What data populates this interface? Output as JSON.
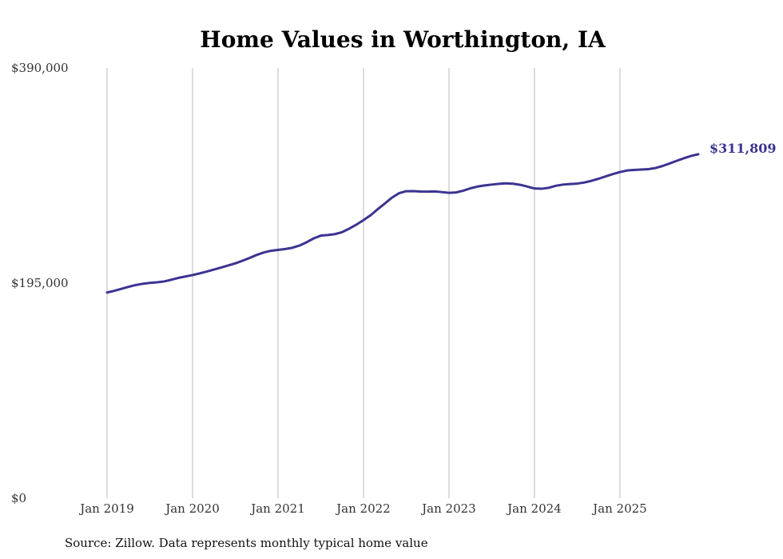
{
  "chart_data": {
    "type": "line",
    "title": "Home Values in Worthington, IA",
    "source": "Source: Zillow. Data represents monthly typical home value",
    "xlabel": "",
    "ylabel": "",
    "ylim": [
      0,
      390000
    ],
    "y_ticks": [
      {
        "value": 0,
        "label": "$0"
      },
      {
        "value": 195000,
        "label": "$195,000"
      },
      {
        "value": 390000,
        "label": "$390,000"
      }
    ],
    "x_range": [
      2019.0,
      2025.9167
    ],
    "x_ticks": [
      {
        "value": 2019,
        "label": "Jan 2019"
      },
      {
        "value": 2020,
        "label": "Jan 2020"
      },
      {
        "value": 2021,
        "label": "Jan 2021"
      },
      {
        "value": 2022,
        "label": "Jan 2022"
      },
      {
        "value": 2023,
        "label": "Jan 2023"
      },
      {
        "value": 2024,
        "label": "Jan 2024"
      },
      {
        "value": 2025,
        "label": "Jan 2025"
      }
    ],
    "grid": "vertical",
    "line_color": "#3b3491",
    "grid_color": "#bbbbbb",
    "end_label": "$311,809",
    "series": [
      {
        "name": "Home Values",
        "x": [
          2019.0,
          2019.0833,
          2019.1667,
          2019.25,
          2019.3333,
          2019.4167,
          2019.5,
          2019.5833,
          2019.6667,
          2019.75,
          2019.8333,
          2019.9167,
          2020.0,
          2020.0833,
          2020.1667,
          2020.25,
          2020.3333,
          2020.4167,
          2020.5,
          2020.5833,
          2020.6667,
          2020.75,
          2020.8333,
          2020.9167,
          2021.0,
          2021.0833,
          2021.1667,
          2021.25,
          2021.3333,
          2021.4167,
          2021.5,
          2021.5833,
          2021.6667,
          2021.75,
          2021.8333,
          2021.9167,
          2022.0,
          2022.0833,
          2022.1667,
          2022.25,
          2022.3333,
          2022.4167,
          2022.5,
          2022.5833,
          2022.6667,
          2022.75,
          2022.8333,
          2022.9167,
          2023.0,
          2023.0833,
          2023.1667,
          2023.25,
          2023.3333,
          2023.4167,
          2023.5,
          2023.5833,
          2023.6667,
          2023.75,
          2023.8333,
          2023.9167,
          2024.0,
          2024.0833,
          2024.1667,
          2024.25,
          2024.3333,
          2024.4167,
          2024.5,
          2024.5833,
          2024.6667,
          2024.75,
          2024.8333,
          2024.9167,
          2025.0,
          2025.0833,
          2025.1667,
          2025.25,
          2025.3333,
          2025.4167,
          2025.5,
          2025.5833,
          2025.6667,
          2025.75,
          2025.8333,
          2025.9167
        ],
        "values": [
          186500,
          188000,
          189800,
          191600,
          193200,
          194400,
          195200,
          195700,
          196500,
          198000,
          199700,
          201000,
          202300,
          203800,
          205500,
          207300,
          209100,
          211000,
          212900,
          215200,
          217800,
          220500,
          222800,
          224300,
          225100,
          225900,
          227000,
          229000,
          232000,
          235500,
          238000,
          238600,
          239400,
          241200,
          244400,
          248000,
          252100,
          256500,
          262000,
          267200,
          272500,
          276500,
          278300,
          278400,
          278000,
          277900,
          278100,
          277500,
          276800,
          277200,
          278800,
          280900,
          282500,
          283500,
          284300,
          285000,
          285400,
          285100,
          284100,
          282500,
          280800,
          280500,
          281400,
          283200,
          284300,
          284800,
          285200,
          286200,
          287700,
          289600,
          291700,
          293800,
          295600,
          297100,
          297600,
          297900,
          298300,
          299300,
          301200,
          303500,
          305900,
          308200,
          310300,
          311809
        ]
      }
    ]
  }
}
